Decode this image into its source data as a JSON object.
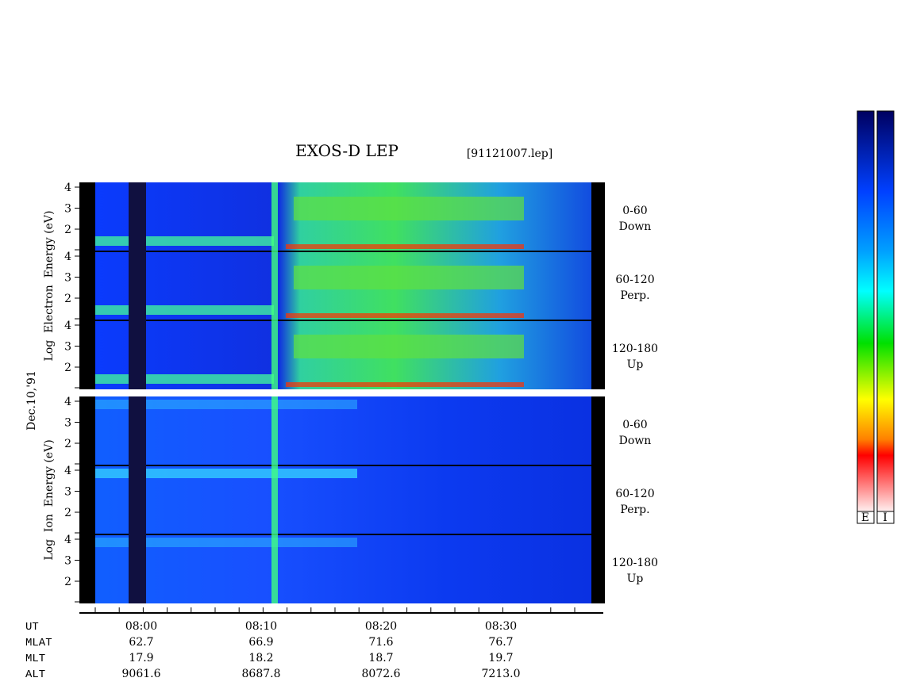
{
  "title": "EXOS-D LEP",
  "file": "[91121007.lep]",
  "date": "Dec.10,'91",
  "energy_ticks": [
    2,
    3,
    4
  ],
  "panels": [
    {
      "axis_label": "Log  Electron  Energy (eV)",
      "channels": [
        {
          "angle": "0-60",
          "dir": "Down"
        },
        {
          "angle": "60-120",
          "dir": "Perp."
        },
        {
          "angle": "120-180",
          "dir": "Up"
        }
      ]
    },
    {
      "axis_label": "Log  Ion  Energy (eV)",
      "channels": [
        {
          "angle": "0-60",
          "dir": "Down"
        },
        {
          "angle": "60-120",
          "dir": "Perp."
        },
        {
          "angle": "120-180",
          "dir": "Up"
        }
      ]
    }
  ],
  "orbit_table": {
    "rows": [
      {
        "label": "UT",
        "values": [
          "08:00",
          "08:10",
          "08:20",
          "08:30"
        ]
      },
      {
        "label": "MLAT",
        "values": [
          "62.7",
          "66.9",
          "71.6",
          "76.7"
        ]
      },
      {
        "label": "MLT",
        "values": [
          "17.9",
          "18.2",
          "18.7",
          "19.7"
        ]
      },
      {
        "label": "ALT",
        "values": [
          "9061.6",
          "8687.8",
          "8072.6",
          "7213.0"
        ]
      }
    ]
  },
  "colorbars": [
    "E",
    "I"
  ]
}
